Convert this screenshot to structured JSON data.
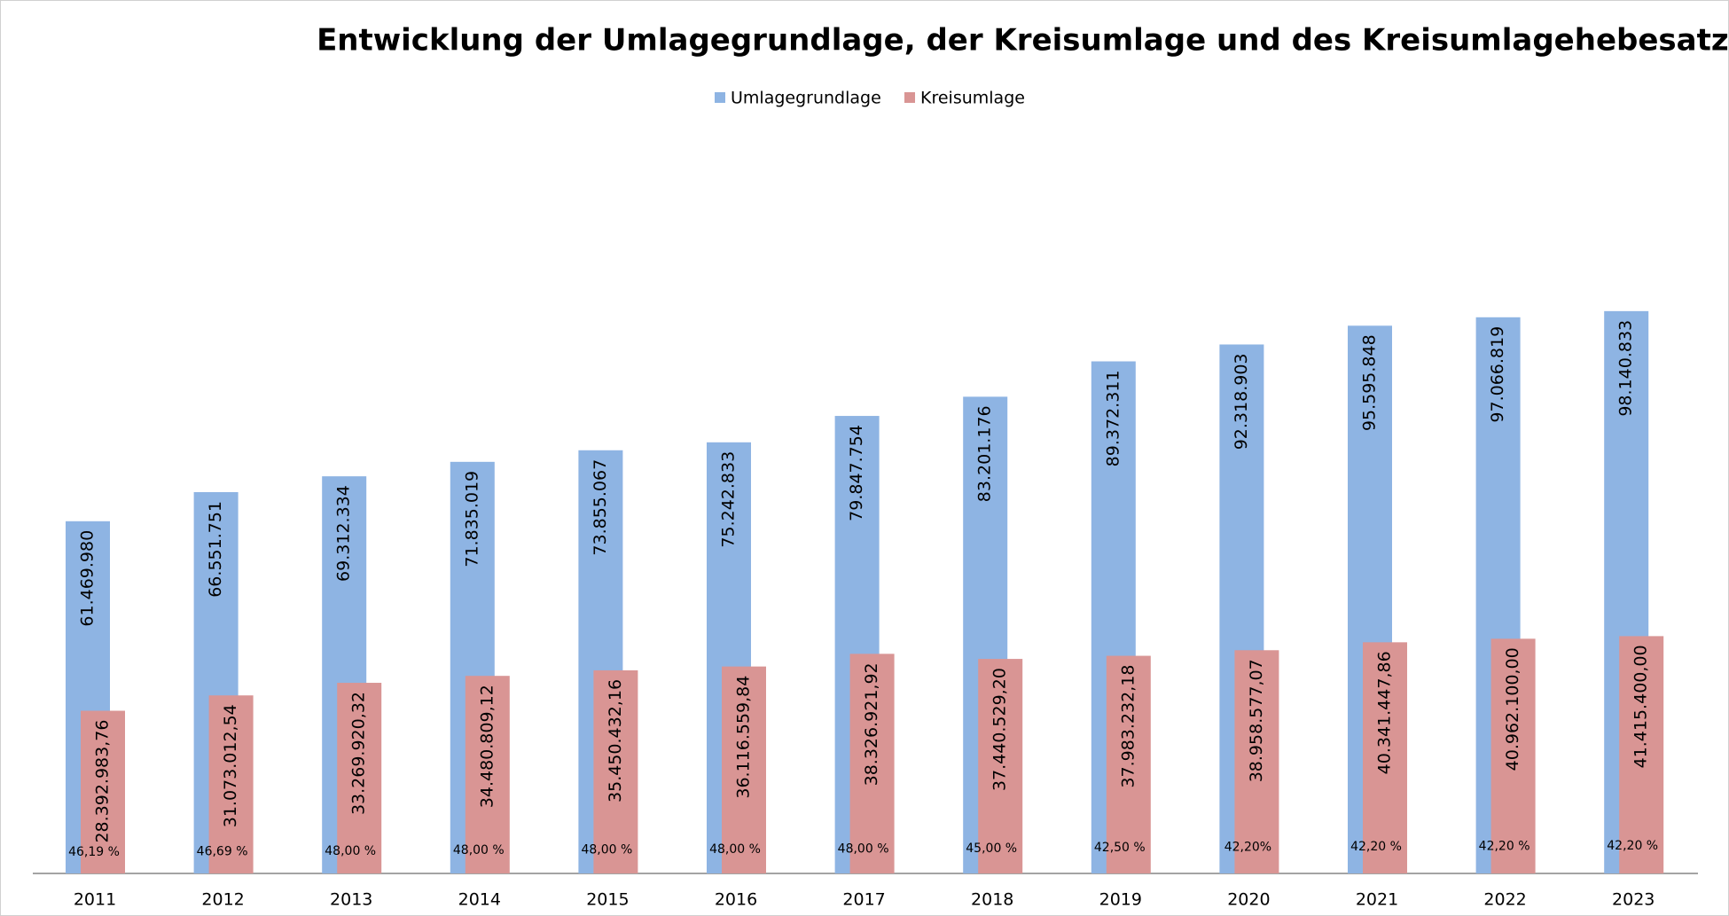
{
  "chart_data": {
    "type": "bar",
    "title": "Entwicklung der Umlagegrundlage, der Kreisumlage und des Kreisumlagehebesatzes",
    "categories": [
      "2011",
      "2012",
      "2013",
      "2014",
      "2015",
      "2016",
      "2017",
      "2018",
      "2019",
      "2020",
      "2021",
      "2022",
      "2023"
    ],
    "series": [
      {
        "name": "Umlagegrundlage",
        "color": "#8eb4e3",
        "values": [
          61469980,
          66551751,
          69312334,
          71835019,
          73855067,
          75242833,
          79847754,
          83201176,
          89372311,
          92318903,
          95595848,
          97066819,
          98140833
        ],
        "value_labels": [
          "61.469.980",
          "66.551.751",
          "69.312.334",
          "71.835.019",
          "73.855.067",
          "75.242.833",
          "79.847.754",
          "83.201.176",
          "89.372.311",
          "92.318.903",
          "95.595.848",
          "97.066.819",
          "98.140.833"
        ]
      },
      {
        "name": "Kreisumlage",
        "color": "#d99594",
        "values": [
          28392983.76,
          31073012.54,
          33269920.32,
          34480809.12,
          35450432.16,
          36116559.84,
          38326921.92,
          37440529.2,
          37983232.18,
          38958577.07,
          40341447.86,
          40962100.0,
          41415400.0
        ],
        "value_labels": [
          "28.392.983,76",
          "31.073.012,54",
          "33.269.920,32",
          "34.480.809,12",
          "35.450.432,16",
          "36.116.559,84",
          "38.326.921,92",
          "37.440.529,20",
          "37.983.232,18",
          "38.958.577,07",
          "40.341.447,86",
          "40.962.100,00",
          "41.415.400,00"
        ]
      }
    ],
    "annotations": [
      "46,19 %",
      "46,69 %",
      "48,00 %",
      "48,00 %",
      "48,00 %",
      "48,00 %",
      "48,00 %",
      "45,00 %",
      "42,50 %",
      "42,20%",
      "42,20 %",
      "42,20 %",
      "42,20 %"
    ],
    "ylim": [
      0,
      130000000
    ],
    "legend": "top"
  }
}
